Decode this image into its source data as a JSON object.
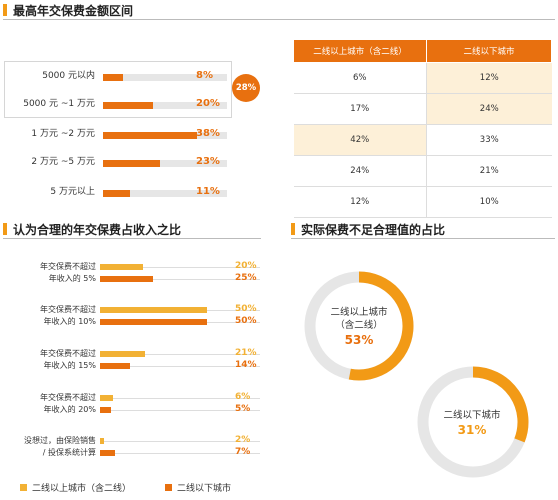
{
  "colors": {
    "orange": "#e8700f",
    "yellow": "#f2b134",
    "track": "#e6e6e6",
    "highlight_cell": "#fdf0d8"
  },
  "sections": {
    "max_premium": "最高年交保费金额区间",
    "reasonable_ratio": "认为合理的年交保费占收入之比",
    "insufficient": "实际保费不足合理值的占比"
  },
  "chart_data": [
    {
      "type": "bar",
      "title": "最高年交保费金额区间",
      "categories": [
        "5000 元以内",
        "5000 元 ~1 万元",
        "1 万元 ~2 万元",
        "2 万元 ~5 万元",
        "5 万元以上"
      ],
      "values": [
        8,
        20,
        38,
        23,
        11
      ],
      "value_labels": [
        "8%",
        "20%",
        "38%",
        "23%",
        "11%"
      ],
      "xlim": [
        0,
        50
      ],
      "highlight_group": {
        "categories": [
          "5000 元以内",
          "5000 元 ~1 万元"
        ],
        "total_label": "28%"
      }
    },
    {
      "type": "table",
      "columns": [
        "二线以上城市（含二线）",
        "二线以下城市"
      ],
      "rows": [
        [
          "6%",
          "12%"
        ],
        [
          "17%",
          "24%"
        ],
        [
          "42%",
          "33%"
        ],
        [
          "24%",
          "21%"
        ],
        [
          "12%",
          "10%"
        ]
      ],
      "highlighted": [
        [
          0,
          1
        ],
        [
          1,
          1
        ],
        [
          2,
          0
        ]
      ]
    },
    {
      "type": "bar",
      "title": "认为合理的年交保费占收入之比",
      "categories": [
        [
          "年交保费不超过",
          "年收入的 5%"
        ],
        [
          "年交保费不超过",
          "年收入的 10%"
        ],
        [
          "年交保费不超过",
          "年收入的 15%"
        ],
        [
          "年交保费不超过",
          "年收入的 20%"
        ],
        [
          "没想过，由保险销售",
          "/ 投保系统计算"
        ]
      ],
      "series": [
        {
          "name": "二线以上城市（含二线）",
          "color": "#f2b134",
          "values": [
            20,
            50,
            21,
            6,
            2
          ],
          "labels": [
            "20%",
            "50%",
            "21%",
            "6%",
            "2%"
          ]
        },
        {
          "name": "二线以下城市",
          "color": "#e8700f",
          "values": [
            25,
            50,
            14,
            5,
            7
          ],
          "labels": [
            "25%",
            "50%",
            "14%",
            "5%",
            "7%"
          ]
        }
      ],
      "xlim": [
        0,
        75
      ],
      "legend": "bottom"
    },
    {
      "type": "pie",
      "title": "实际保费不足合理值的占比",
      "charts": [
        {
          "label_lines": [
            "二线以上城市",
            "（含二线）"
          ],
          "value": 53,
          "label": "53%"
        },
        {
          "label_lines": [
            "二线以下城市"
          ],
          "value": 31,
          "label": "31%"
        }
      ]
    }
  ]
}
